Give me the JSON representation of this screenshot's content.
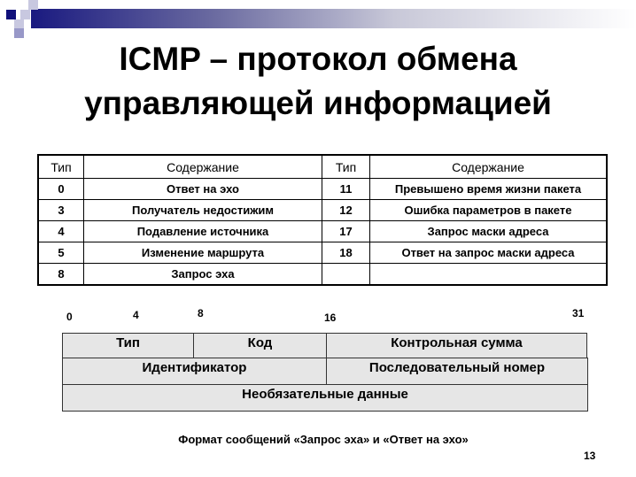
{
  "title": [
    "ICMP – протокол обмена",
    "управляющей информацией"
  ],
  "table": {
    "headers": [
      "Тип",
      "Содержание",
      "Тип",
      "Содержание"
    ],
    "rows": [
      [
        "0",
        "Ответ на эхо",
        "11",
        "Превышено время жизни пакета"
      ],
      [
        "3",
        "Получатель недостижим",
        "12",
        "Ошибка параметров в пакете"
      ],
      [
        "4",
        "Подавление источника",
        "17",
        "Запрос маски адреса"
      ],
      [
        "5",
        "Изменение маршрута",
        "18",
        "Ответ на запрос маски адреса"
      ],
      [
        "8",
        "Запрос эха",
        "",
        ""
      ]
    ]
  },
  "format": {
    "bits": [
      "0",
      "4",
      "8",
      "16",
      "31"
    ],
    "fields": [
      "Тип",
      "Код",
      "Контрольная сумма",
      "Идентификатор",
      "Последовательный номер",
      "Необязательные данные"
    ],
    "caption": "Формат сообщений «Запрос эха» и «Ответ на эхо»"
  },
  "page_number": "13"
}
